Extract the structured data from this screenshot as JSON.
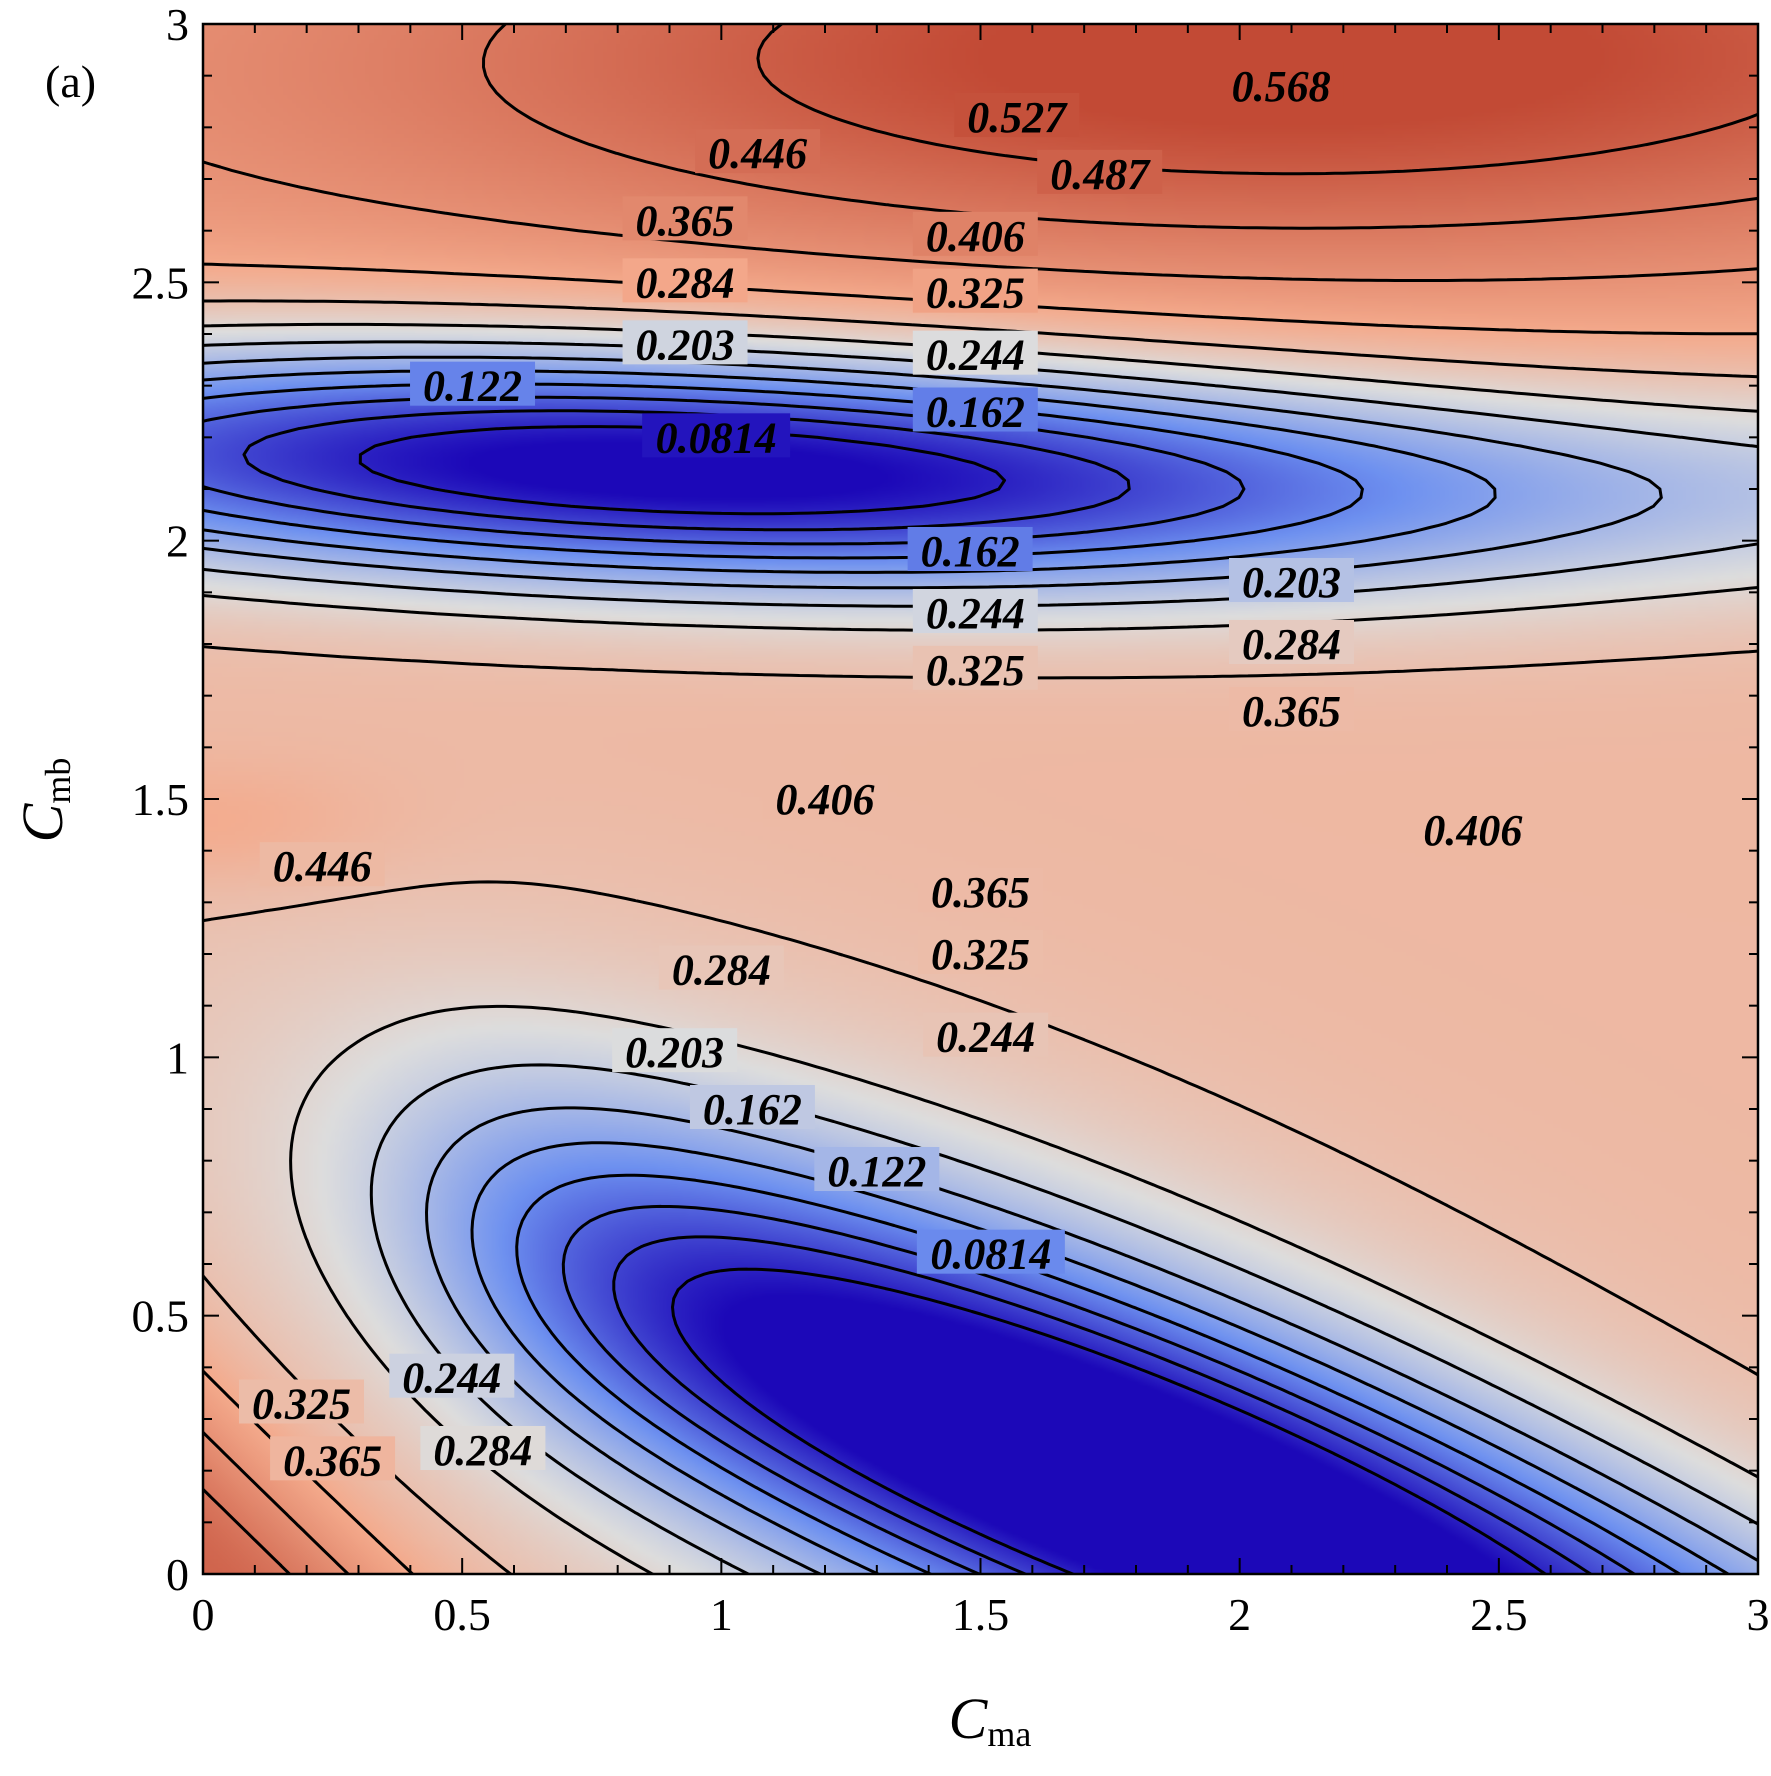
{
  "panel_label": "(a)",
  "chart_data": {
    "type": "heatmap",
    "subtype": "filled-contour",
    "title": "",
    "xlabel": {
      "main": "C",
      "sub": "ma"
    },
    "ylabel": {
      "main": "C",
      "sub": "mb"
    },
    "xlim": [
      0,
      3
    ],
    "ylim": [
      0,
      3
    ],
    "xticks": [
      0,
      0.5,
      1,
      1.5,
      2,
      2.5,
      3
    ],
    "yticks": [
      0,
      0.5,
      1,
      1.5,
      2,
      2.5,
      3
    ],
    "xtick_labels": [
      "0",
      "0.5",
      "1",
      "1.5",
      "2",
      "2.5",
      "3"
    ],
    "ytick_labels": [
      "0",
      "0.5",
      "1",
      "1.5",
      "2",
      "2.5",
      "3"
    ],
    "colormap": {
      "low": "#1c08b8",
      "mid": "#dddddd",
      "high": "#c24a35"
    },
    "color_range": [
      0.05,
      0.6
    ],
    "grid": false,
    "contour_levels": [
      0.0814,
      0.122,
      0.162,
      0.203,
      0.244,
      0.284,
      0.325,
      0.365,
      0.406,
      0.446,
      0.487,
      0.527,
      0.568
    ],
    "minima": [
      {
        "x": 0.75,
        "y": 2.18,
        "value": 0.06
      },
      {
        "x": 2.05,
        "y": 0.1,
        "value": 0.05
      }
    ],
    "contour_labels": [
      {
        "text": "0.568",
        "x": 2.08,
        "y": 2.88
      },
      {
        "text": "0.527",
        "x": 1.57,
        "y": 2.82
      },
      {
        "text": "0.487",
        "x": 1.73,
        "y": 2.71
      },
      {
        "text": "0.446",
        "x": 1.07,
        "y": 2.75
      },
      {
        "text": "0.406",
        "x": 1.49,
        "y": 2.59
      },
      {
        "text": "0.365",
        "x": 0.93,
        "y": 2.62
      },
      {
        "text": "0.325",
        "x": 1.49,
        "y": 2.48
      },
      {
        "text": "0.284",
        "x": 0.93,
        "y": 2.5
      },
      {
        "text": "0.244",
        "x": 1.49,
        "y": 2.36
      },
      {
        "text": "0.203",
        "x": 0.93,
        "y": 2.38
      },
      {
        "text": "0.162",
        "x": 1.49,
        "y": 2.25
      },
      {
        "text": "0.122",
        "x": 0.52,
        "y": 2.3
      },
      {
        "text": "0.0814",
        "x": 0.99,
        "y": 2.2
      },
      {
        "text": "0.162",
        "x": 1.48,
        "y": 1.98
      },
      {
        "text": "0.203",
        "x": 2.1,
        "y": 1.92
      },
      {
        "text": "0.244",
        "x": 1.49,
        "y": 1.86
      },
      {
        "text": "0.284",
        "x": 2.1,
        "y": 1.8
      },
      {
        "text": "0.325",
        "x": 1.49,
        "y": 1.75
      },
      {
        "text": "0.365",
        "x": 2.1,
        "y": 1.67
      },
      {
        "text": "0.406",
        "x": 1.2,
        "y": 1.5
      },
      {
        "text": "0.406",
        "x": 2.45,
        "y": 1.44
      },
      {
        "text": "0.446",
        "x": 0.23,
        "y": 1.37
      },
      {
        "text": "0.365",
        "x": 1.5,
        "y": 1.32
      },
      {
        "text": "0.325",
        "x": 1.5,
        "y": 1.2
      },
      {
        "text": "0.284",
        "x": 1.0,
        "y": 1.17
      },
      {
        "text": "0.244",
        "x": 1.51,
        "y": 1.04
      },
      {
        "text": "0.203",
        "x": 0.91,
        "y": 1.01
      },
      {
        "text": "0.162",
        "x": 1.06,
        "y": 0.9
      },
      {
        "text": "0.122",
        "x": 1.3,
        "y": 0.78
      },
      {
        "text": "0.0814",
        "x": 1.52,
        "y": 0.62
      },
      {
        "text": "0.325",
        "x": 0.19,
        "y": 0.33
      },
      {
        "text": "0.244",
        "x": 0.48,
        "y": 0.38
      },
      {
        "text": "0.365",
        "x": 0.25,
        "y": 0.22
      },
      {
        "text": "0.284",
        "x": 0.54,
        "y": 0.24
      }
    ]
  }
}
